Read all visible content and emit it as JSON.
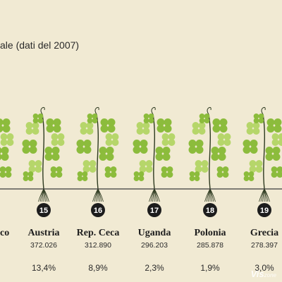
{
  "title_fragment": "ale (dati del 2007)",
  "watermark": {
    "main": "Vis",
    "sub": "zone"
  },
  "colors": {
    "background": "#f1ead3",
    "leaf": "#8cbc3c",
    "leaf_light": "#b6d66a",
    "stem": "#2e3a20",
    "rank_circle": "#1c1c1c",
    "axis": "#3a3a3a"
  },
  "chart_data": {
    "type": "table",
    "title": "",
    "partial_left_label": "co",
    "items": [
      {
        "rank": "15",
        "country": "Austria",
        "area": "372.026",
        "share": "13,4%"
      },
      {
        "rank": "16",
        "country": "Rep. Ceca",
        "area": "312.890",
        "share": "8,9%"
      },
      {
        "rank": "17",
        "country": "Uganda",
        "area": "296.203",
        "share": "2,3%"
      },
      {
        "rank": "18",
        "country": "Polonia",
        "area": "285.878",
        "share": "1,9%"
      },
      {
        "rank": "19",
        "country": "Grecia",
        "area": "278.397",
        "share": "3,0%"
      }
    ]
  }
}
